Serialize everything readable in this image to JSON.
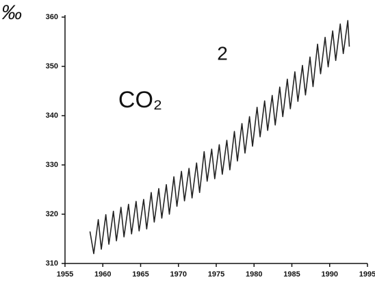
{
  "chart_data": {
    "type": "line",
    "y_label": "‰",
    "annotations": [
      "2",
      "CO₂"
    ],
    "x": [
      1958.3,
      1958.8,
      1959.4,
      1959.8,
      1960.4,
      1960.8,
      1961.4,
      1961.8,
      1962.4,
      1962.8,
      1963.4,
      1963.8,
      1964.4,
      1964.8,
      1965.4,
      1965.8,
      1966.4,
      1966.8,
      1967.4,
      1967.8,
      1968.4,
      1968.8,
      1969.4,
      1969.8,
      1970.4,
      1970.8,
      1971.4,
      1971.8,
      1972.4,
      1972.8,
      1973.4,
      1973.8,
      1974.4,
      1974.8,
      1975.4,
      1975.8,
      1976.4,
      1976.8,
      1977.4,
      1977.8,
      1978.4,
      1978.8,
      1979.4,
      1979.8,
      1980.4,
      1980.8,
      1981.4,
      1981.8,
      1982.4,
      1982.8,
      1983.4,
      1983.8,
      1984.4,
      1984.8,
      1985.4,
      1985.8,
      1986.4,
      1986.8,
      1987.4,
      1987.8,
      1988.4,
      1988.8,
      1989.4,
      1989.8,
      1990.4,
      1990.8,
      1991.4,
      1991.8,
      1992.4,
      1992.6
    ],
    "series": [
      {
        "color": "#222222",
        "values": [
          316.5,
          312.0,
          318.9,
          312.9,
          319.9,
          313.9,
          320.6,
          314.6,
          321.4,
          315.4,
          322.0,
          316.0,
          322.6,
          316.6,
          323.0,
          317.0,
          324.4,
          318.4,
          325.2,
          319.2,
          326.0,
          320.0,
          327.6,
          321.6,
          328.7,
          322.7,
          329.3,
          323.3,
          330.4,
          324.4,
          332.7,
          326.7,
          333.2,
          327.2,
          334.1,
          328.1,
          335.0,
          329.0,
          336.8,
          330.8,
          338.4,
          332.4,
          339.8,
          333.8,
          341.7,
          335.7,
          343.0,
          337.0,
          344.1,
          338.1,
          345.8,
          339.8,
          347.4,
          341.4,
          348.9,
          342.9,
          350.2,
          344.2,
          351.9,
          345.9,
          354.5,
          348.5,
          355.9,
          349.9,
          357.2,
          351.2,
          358.6,
          352.6,
          359.3,
          354.0
        ]
      }
    ],
    "xlim": [
      1955,
      1995
    ],
    "xticks": [
      1955,
      1960,
      1965,
      1970,
      1975,
      1980,
      1985,
      1990,
      1995
    ],
    "ylim": [
      310,
      360
    ],
    "yticks": [
      310,
      320,
      330,
      340,
      350,
      360
    ]
  }
}
